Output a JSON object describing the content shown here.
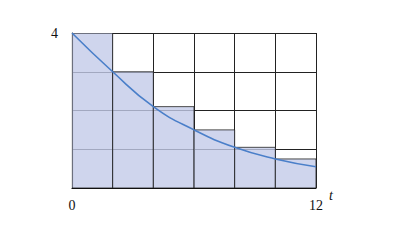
{
  "chart_data": {
    "type": "bar",
    "xlabel": "t",
    "x": [
      0,
      2,
      4,
      6,
      8,
      10,
      12
    ],
    "series": [
      {
        "type": "bar",
        "color": "#c3cbe8",
        "values": [
          4,
          3,
          2.1,
          1.5,
          1.05,
          0.75,
          null
        ]
      },
      {
        "type": "line",
        "color": "#4a7fc9",
        "values": [
          4,
          3,
          2.1,
          1.5,
          1.05,
          0.75,
          0.55
        ]
      }
    ],
    "xlim": [
      0,
      12
    ],
    "ylim": [
      0,
      4
    ],
    "xticks": [
      0,
      12
    ],
    "yticks": [
      4
    ],
    "grid": true
  }
}
